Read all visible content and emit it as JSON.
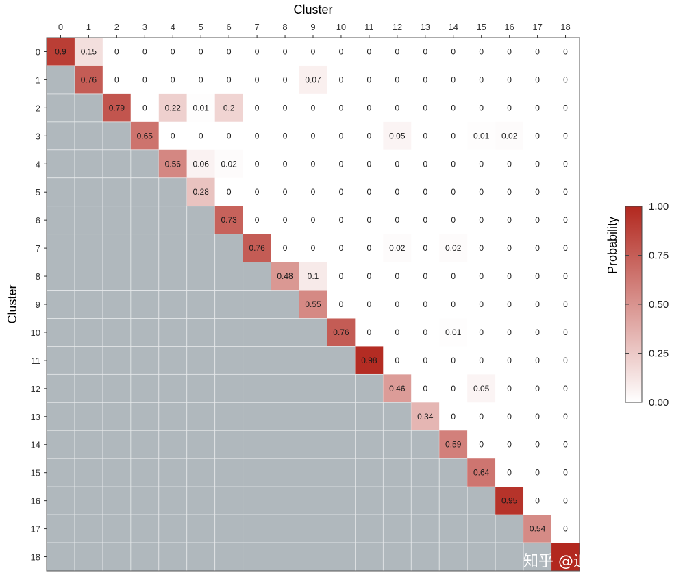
{
  "chart_data": {
    "type": "heatmap",
    "title": "",
    "xlabel": "Cluster",
    "ylabel": "Cluster",
    "x_categories": [
      "0",
      "1",
      "2",
      "3",
      "4",
      "5",
      "6",
      "7",
      "8",
      "9",
      "10",
      "11",
      "12",
      "13",
      "14",
      "15",
      "16",
      "17",
      "18"
    ],
    "y_categories": [
      "0",
      "1",
      "2",
      "3",
      "4",
      "5",
      "6",
      "7",
      "8",
      "9",
      "10",
      "11",
      "12",
      "13",
      "14",
      "15",
      "16",
      "17",
      "18"
    ],
    "x_axis_position": "top",
    "lower_triangle_masked": true,
    "values": [
      [
        0.9,
        0.15,
        0,
        0,
        0,
        0,
        0,
        0,
        0,
        0,
        0,
        0,
        0,
        0,
        0,
        0,
        0,
        0,
        0
      ],
      [
        null,
        0.76,
        0,
        0,
        0,
        0,
        0,
        0,
        0,
        0.07,
        0,
        0,
        0,
        0,
        0,
        0,
        0,
        0,
        0
      ],
      [
        null,
        null,
        0.79,
        0,
        0.22,
        0.01,
        0.2,
        0,
        0,
        0,
        0,
        0,
        0,
        0,
        0,
        0,
        0,
        0,
        0
      ],
      [
        null,
        null,
        null,
        0.65,
        0,
        0,
        0,
        0,
        0,
        0,
        0,
        0,
        0.05,
        0,
        0,
        0.01,
        0.02,
        0,
        0
      ],
      [
        null,
        null,
        null,
        null,
        0.56,
        0.06,
        0.02,
        0,
        0,
        0,
        0,
        0,
        0,
        0,
        0,
        0,
        0,
        0,
        0
      ],
      [
        null,
        null,
        null,
        null,
        null,
        0.28,
        0,
        0,
        0,
        0,
        0,
        0,
        0,
        0,
        0,
        0,
        0,
        0,
        0
      ],
      [
        null,
        null,
        null,
        null,
        null,
        null,
        0.73,
        0,
        0,
        0,
        0,
        0,
        0,
        0,
        0,
        0,
        0,
        0,
        0
      ],
      [
        null,
        null,
        null,
        null,
        null,
        null,
        null,
        0.76,
        0,
        0,
        0,
        0,
        0.02,
        0,
        0.02,
        0,
        0,
        0,
        0
      ],
      [
        null,
        null,
        null,
        null,
        null,
        null,
        null,
        null,
        0.48,
        0.1,
        0,
        0,
        0,
        0,
        0,
        0,
        0,
        0,
        0
      ],
      [
        null,
        null,
        null,
        null,
        null,
        null,
        null,
        null,
        null,
        0.55,
        0,
        0,
        0,
        0,
        0,
        0,
        0,
        0,
        0
      ],
      [
        null,
        null,
        null,
        null,
        null,
        null,
        null,
        null,
        null,
        null,
        0.76,
        0,
        0,
        0,
        0.01,
        0,
        0,
        0,
        0
      ],
      [
        null,
        null,
        null,
        null,
        null,
        null,
        null,
        null,
        null,
        null,
        null,
        0.98,
        0,
        0,
        0,
        0,
        0,
        0,
        0
      ],
      [
        null,
        null,
        null,
        null,
        null,
        null,
        null,
        null,
        null,
        null,
        null,
        null,
        0.46,
        0,
        0,
        0.05,
        0,
        0,
        0
      ],
      [
        null,
        null,
        null,
        null,
        null,
        null,
        null,
        null,
        null,
        null,
        null,
        null,
        null,
        0.34,
        0,
        0,
        0,
        0,
        0
      ],
      [
        null,
        null,
        null,
        null,
        null,
        null,
        null,
        null,
        null,
        null,
        null,
        null,
        null,
        null,
        0.59,
        0,
        0,
        0,
        0
      ],
      [
        null,
        null,
        null,
        null,
        null,
        null,
        null,
        null,
        null,
        null,
        null,
        null,
        null,
        null,
        null,
        0.64,
        0,
        0,
        0
      ],
      [
        null,
        null,
        null,
        null,
        null,
        null,
        null,
        null,
        null,
        null,
        null,
        null,
        null,
        null,
        null,
        null,
        0.95,
        0,
        0
      ],
      [
        null,
        null,
        null,
        null,
        null,
        null,
        null,
        null,
        null,
        null,
        null,
        null,
        null,
        null,
        null,
        null,
        null,
        0.54,
        0
      ],
      [
        null,
        null,
        null,
        null,
        null,
        null,
        null,
        null,
        null,
        null,
        null,
        null,
        null,
        null,
        null,
        null,
        null,
        null,
        1.0
      ]
    ],
    "value_labels_shown": "upper triangle and diagonal; bottom-right cell covered by watermark",
    "colorscale": {
      "low": "#ffffff",
      "high": "#b2281f",
      "mask": "#b0b8bd",
      "grid": "#e6e8ea"
    },
    "legend": {
      "title": "Probability",
      "ticks": [
        "1.00",
        "0.75",
        "0.50",
        "0.25",
        "0.00"
      ],
      "range": [
        0,
        1
      ],
      "placement": "right"
    },
    "watermark": "知乎 @追风少年i"
  }
}
